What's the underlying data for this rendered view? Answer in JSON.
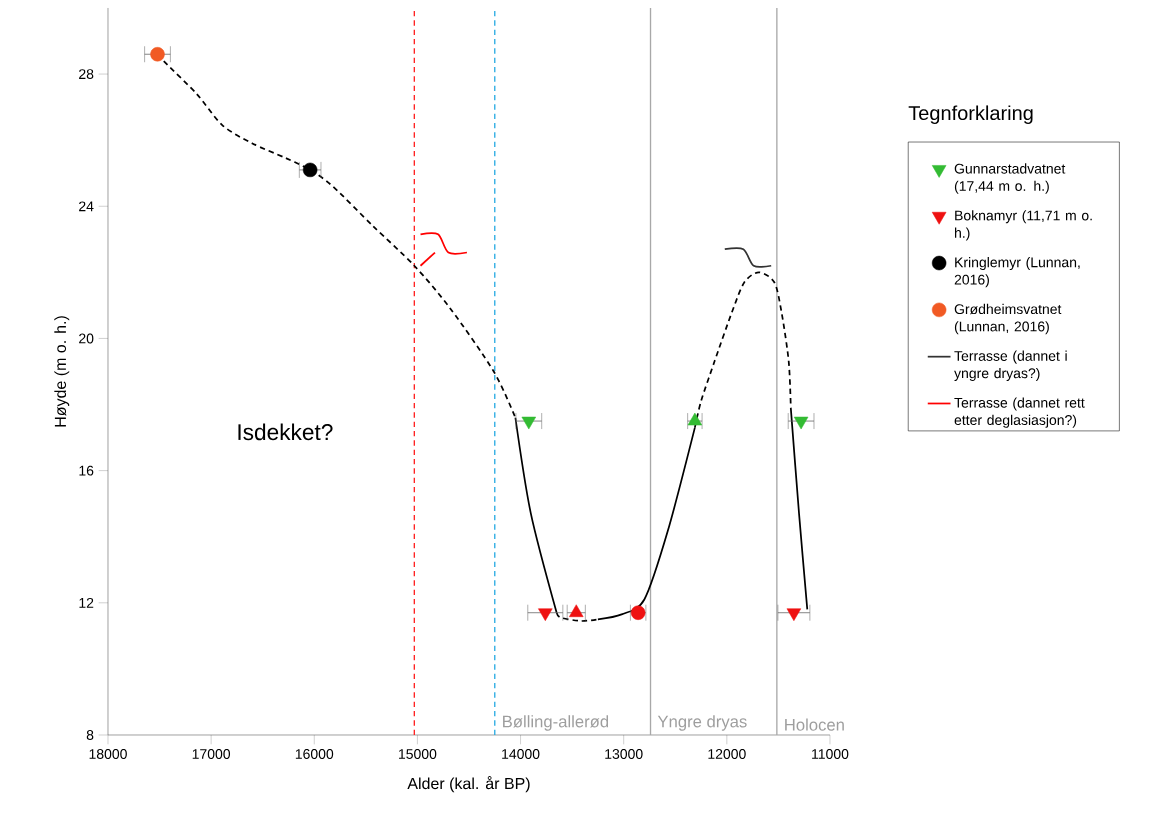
{
  "chart_data": {
    "type": "scatter",
    "xlabel": "Alder (kal. år BP)",
    "ylabel": "Høyde (m o. h.)",
    "legend_title": "Tegnforklaring",
    "legend": "right",
    "xlim": [
      18000,
      11000
    ],
    "ylim": [
      8,
      30
    ],
    "xticks": [
      18000,
      17000,
      16000,
      15000,
      14000,
      13000,
      12000,
      11000
    ],
    "yticks": [
      8,
      12,
      16,
      20,
      24,
      28
    ],
    "series": [
      {
        "name": "Gunnarstadvatnet (17,44 m o. h.)",
        "marker": "triangle-down",
        "color": "#33bb33",
        "x": [
          13920,
          11280
        ],
        "values": [
          17.5,
          17.5
        ],
        "xerrors": [
          125,
          125
        ]
      },
      {
        "marker": "triangle",
        "color": "#33bb33",
        "x": [
          12310
        ],
        "values": [
          17.5
        ],
        "xerrors": [
          70
        ]
      },
      {
        "name": "Boknamyr (11,71 m o. h.)",
        "marker": "triangle-down",
        "color": "#ee1111",
        "x": [
          13760,
          11350
        ],
        "values": [
          11.7,
          11.7
        ],
        "xerrors": [
          170,
          155
        ]
      },
      {
        "marker": "triangle",
        "color": "#ee1111",
        "x": [
          13460
        ],
        "values": [
          11.7
        ],
        "xerrors": [
          88
        ]
      },
      {
        "marker": "circle",
        "color": "#ee1111",
        "x": [
          12860
        ],
        "values": [
          11.7
        ],
        "xerrors": [
          75
        ]
      },
      {
        "name": "Kringlemyr (Lunnan, 2016)",
        "marker": "circle",
        "color": "#000000",
        "x": [
          16040
        ],
        "values": [
          25.1
        ],
        "xerrors": [
          105
        ]
      },
      {
        "name": "Grødheimsvatnet (Lunnan, 2016)",
        "marker": "circle",
        "color": "#f15a24",
        "x": [
          17520
        ],
        "values": [
          28.6
        ],
        "xerrors": [
          125
        ]
      },
      {
        "name": "Terrasse (dannet i yngre dryas?)",
        "type": "line",
        "marker": "none",
        "line_style": "solid",
        "color": "#333333",
        "x": [
          12020,
          11840,
          11740,
          11570
        ],
        "values": [
          22.7,
          22.7,
          22.2,
          22.2
        ]
      },
      {
        "name": "Terrasse (dannet rett etter deglasiasjon?)",
        "type": "line",
        "marker": "none",
        "line_style": "solid",
        "color": "#ff0000",
        "x": [
          14970,
          14800,
          14700,
          14520
        ],
        "values": [
          23.15,
          23.15,
          22.6,
          22.6
        ]
      },
      {
        "type": "line",
        "marker": "none",
        "line_style": "solid",
        "color": "#ff0000",
        "x": [
          14830,
          14970
        ],
        "values": [
          22.6,
          22.2
        ]
      },
      {
        "type": "line",
        "marker": "none",
        "line_style": "dashed",
        "color": "#000000",
        "x": [
          17520,
          17430,
          17140,
          16890,
          16600,
          16270,
          16040,
          15820,
          15430,
          15030,
          14680,
          14260,
          14050
        ],
        "values": [
          28.6,
          28.3,
          27.4,
          26.45,
          25.9,
          25.45,
          25.1,
          24.6,
          23.4,
          22.2,
          20.9,
          19.0,
          17.6
        ]
      },
      {
        "type": "line",
        "marker": "none",
        "line_style": "solid",
        "color": "#000000",
        "x": [
          14050,
          13900,
          13650
        ],
        "values": [
          17.6,
          14.7,
          11.7
        ]
      },
      {
        "type": "line",
        "marker": "none",
        "line_style": "dashed",
        "color": "#000000",
        "x": [
          13650,
          13610,
          13410,
          13250
        ],
        "values": [
          11.7,
          11.55,
          11.45,
          11.5
        ]
      },
      {
        "type": "line",
        "marker": "none",
        "line_style": "solid",
        "color": "#000000",
        "x": [
          13250,
          13020,
          12800,
          12570,
          12310
        ],
        "values": [
          11.5,
          11.65,
          12.1,
          14.2,
          17.3
        ]
      },
      {
        "type": "line",
        "marker": "none",
        "line_style": "dashed",
        "color": "#000000",
        "x": [
          12310,
          12250,
          12120,
          11950,
          11830,
          11690,
          11540,
          11470,
          11400,
          11380
        ],
        "values": [
          17.3,
          18.1,
          19.3,
          20.8,
          21.7,
          22.0,
          21.7,
          20.8,
          19.3,
          17.9
        ]
      },
      {
        "type": "line",
        "marker": "none",
        "line_style": "solid",
        "color": "#000000",
        "x": [
          11380,
          11300,
          11220
        ],
        "values": [
          17.9,
          14.7,
          11.8
        ]
      }
    ],
    "ref_lines": [
      {
        "axis": "x",
        "value": 15030,
        "color": "#ff2222",
        "line_style": "dashed"
      },
      {
        "axis": "x",
        "value": 14250,
        "color": "#29abe2",
        "line_style": "dashed",
        "label": "Bølling-allerød"
      },
      {
        "axis": "x",
        "value": 12740,
        "color": "#a8a8a8",
        "line_style": "solid",
        "label": "Yngre dryas"
      },
      {
        "axis": "x",
        "value": 11515,
        "color": "#a8a8a8",
        "line_style": "solid",
        "label": "Holocen"
      }
    ],
    "annotations": [
      "Isdekket?"
    ]
  }
}
